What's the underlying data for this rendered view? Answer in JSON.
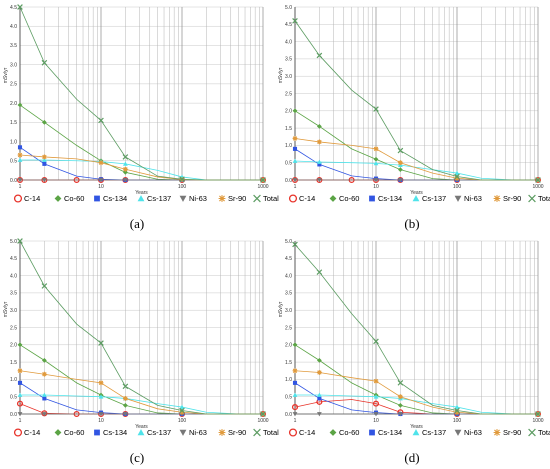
{
  "chart_data": [
    {
      "type": "line",
      "caption": "(a)",
      "xlabel": "Years",
      "ylabel": "mSv/yr",
      "xscale": "log",
      "xlim": [
        1,
        1000
      ],
      "ylim": [
        0,
        4.5
      ],
      "x_ticks": [
        "1",
        "10",
        "100",
        "1000"
      ],
      "y_ticks": [
        "0.0",
        "0.5",
        "1.0",
        "1.5",
        "2.0",
        "2.5",
        "3.0",
        "3.5",
        "4.0",
        "4.5"
      ],
      "grid": true,
      "legend_position": "bottom",
      "x": [
        1,
        2,
        5,
        10,
        20,
        50,
        100,
        200,
        500,
        1000
      ],
      "series": [
        {
          "name": "C-14",
          "color": "#e8332a",
          "marker": "circle",
          "values": [
            0,
            0,
            0,
            0,
            0,
            0,
            0,
            0,
            0,
            0
          ],
          "marker_x": [
            1,
            2,
            5,
            10,
            20,
            100,
            1000
          ]
        },
        {
          "name": "Co-60",
          "color": "#5ba445",
          "marker": "diamond",
          "values": [
            1.95,
            1.5,
            0.9,
            0.5,
            0.2,
            0.02,
            0,
            0,
            0,
            0
          ],
          "marker_x": [
            1,
            2,
            10,
            20,
            100,
            1000
          ]
        },
        {
          "name": "Cs-134",
          "color": "#3155e2",
          "marker": "square",
          "values": [
            0.85,
            0.42,
            0.1,
            0.02,
            0,
            0,
            0,
            0,
            0,
            0
          ],
          "marker_x": [
            1,
            2,
            10,
            20,
            100,
            1000
          ]
        },
        {
          "name": "Cs-137",
          "color": "#4fe3ea",
          "marker": "triangle",
          "values": [
            0.52,
            0.52,
            0.5,
            0.48,
            0.42,
            0.25,
            0.08,
            0,
            0,
            0
          ],
          "marker_x": [
            1,
            2,
            10,
            20,
            100,
            1000
          ]
        },
        {
          "name": "Ni-63",
          "color": "#777777",
          "marker": "triangle-down",
          "values": [
            0,
            0,
            0,
            0,
            0,
            0,
            0,
            0,
            0,
            0
          ],
          "marker_x": [
            1,
            2,
            10,
            20,
            100,
            1000
          ]
        },
        {
          "name": "Sr-90",
          "color": "#e09a3c",
          "marker": "star",
          "values": [
            0.65,
            0.6,
            0.55,
            0.45,
            0.28,
            0.08,
            0.01,
            0,
            0,
            0
          ],
          "marker_x": [
            1,
            2,
            10,
            20,
            100,
            1000
          ]
        },
        {
          "name": "Total",
          "color": "#5c9c62",
          "marker": "x",
          "values": [
            4.5,
            3.05,
            2.1,
            1.55,
            0.6,
            0.1,
            0.02,
            0,
            0,
            0
          ],
          "marker_x": [
            1,
            2,
            10,
            20,
            100,
            1000
          ]
        }
      ]
    },
    {
      "type": "line",
      "caption": "(b)",
      "xlabel": "Years",
      "ylabel": "mSv/yr",
      "xscale": "log",
      "xlim": [
        1,
        1000
      ],
      "ylim": [
        0,
        5.0
      ],
      "x_ticks": [
        "1",
        "10",
        "100",
        "1000"
      ],
      "y_ticks": [
        "0.0",
        "0.5",
        "1.0",
        "1.5",
        "2.0",
        "2.5",
        "3.0",
        "3.5",
        "4.0",
        "4.5",
        "5.0"
      ],
      "grid": true,
      "legend_position": "bottom",
      "x": [
        1,
        2,
        5,
        10,
        20,
        50,
        100,
        200,
        500,
        1000
      ],
      "series": [
        {
          "name": "C-14",
          "color": "#e8332a",
          "marker": "circle",
          "values": [
            0,
            0,
            0,
            0,
            0,
            0,
            0,
            0,
            0,
            0
          ],
          "marker_x": [
            1,
            2,
            5,
            10,
            20,
            100,
            1000
          ]
        },
        {
          "name": "Co-60",
          "color": "#5ba445",
          "marker": "diamond",
          "values": [
            2.0,
            1.55,
            0.9,
            0.6,
            0.3,
            0.04,
            0,
            0,
            0,
            0
          ],
          "marker_x": [
            1,
            2,
            10,
            20,
            100,
            1000
          ]
        },
        {
          "name": "Cs-134",
          "color": "#3155e2",
          "marker": "square",
          "values": [
            0.9,
            0.45,
            0.12,
            0.04,
            0,
            0,
            0,
            0,
            0,
            0
          ],
          "marker_x": [
            1,
            2,
            10,
            20,
            100,
            1000
          ]
        },
        {
          "name": "Cs-137",
          "color": "#4fe3ea",
          "marker": "triangle",
          "values": [
            0.55,
            0.52,
            0.5,
            0.48,
            0.43,
            0.3,
            0.2,
            0.05,
            0,
            0
          ],
          "marker_x": [
            1,
            2,
            10,
            20,
            100,
            1000
          ]
        },
        {
          "name": "Ni-63",
          "color": "#777777",
          "marker": "triangle-down",
          "values": [
            0,
            0,
            0,
            0,
            0,
            0,
            0,
            0,
            0,
            0
          ],
          "marker_x": [
            1,
            2,
            10,
            20,
            100,
            1000
          ]
        },
        {
          "name": "Sr-90",
          "color": "#e09a3c",
          "marker": "star",
          "values": [
            1.2,
            1.1,
            1.0,
            0.9,
            0.5,
            0.2,
            0.05,
            0,
            0,
            0
          ],
          "marker_x": [
            1,
            2,
            10,
            20,
            100,
            1000
          ]
        },
        {
          "name": "Total",
          "color": "#5c9c62",
          "marker": "x",
          "values": [
            4.6,
            3.6,
            2.6,
            2.05,
            0.85,
            0.3,
            0.1,
            0,
            0,
            0
          ],
          "marker_x": [
            1,
            2,
            10,
            20,
            100,
            1000
          ]
        }
      ]
    },
    {
      "type": "line",
      "caption": "(c)",
      "xlabel": "Years",
      "ylabel": "mSv/yr",
      "xscale": "log",
      "xlim": [
        1,
        1000
      ],
      "ylim": [
        0,
        5.0
      ],
      "x_ticks": [
        "1",
        "10",
        "100",
        "1000"
      ],
      "y_ticks": [
        "0.0",
        "0.5",
        "1.0",
        "1.5",
        "2.0",
        "2.5",
        "3.0",
        "3.5",
        "4.0",
        "4.5",
        "5.0"
      ],
      "grid": true,
      "legend_position": "bottom",
      "x": [
        1,
        2,
        5,
        10,
        20,
        50,
        100,
        200,
        500,
        1000
      ],
      "series": [
        {
          "name": "C-14",
          "color": "#e8332a",
          "marker": "circle",
          "values": [
            0.3,
            0.02,
            0,
            0,
            0,
            0,
            0,
            0,
            0,
            0
          ],
          "marker_x": [
            1,
            2,
            5,
            10,
            20,
            100,
            1000
          ]
        },
        {
          "name": "Co-60",
          "color": "#5ba445",
          "marker": "diamond",
          "values": [
            2.0,
            1.55,
            0.9,
            0.55,
            0.25,
            0.03,
            0,
            0,
            0,
            0
          ],
          "marker_x": [
            1,
            2,
            10,
            20,
            100,
            1000
          ]
        },
        {
          "name": "Cs-134",
          "color": "#3155e2",
          "marker": "square",
          "values": [
            0.9,
            0.45,
            0.12,
            0.04,
            0,
            0,
            0,
            0,
            0,
            0
          ],
          "marker_x": [
            1,
            2,
            10,
            20,
            100,
            1000
          ]
        },
        {
          "name": "Cs-137",
          "color": "#4fe3ea",
          "marker": "triangle",
          "values": [
            0.55,
            0.55,
            0.52,
            0.5,
            0.45,
            0.3,
            0.2,
            0.05,
            0,
            0
          ],
          "marker_x": [
            1,
            2,
            10,
            20,
            100,
            1000
          ]
        },
        {
          "name": "Ni-63",
          "color": "#777777",
          "marker": "triangle-down",
          "values": [
            0,
            0,
            0,
            0,
            0,
            0,
            0,
            0,
            0,
            0
          ],
          "marker_x": [
            1,
            2,
            10,
            20,
            100,
            1000
          ]
        },
        {
          "name": "Sr-90",
          "color": "#e09a3c",
          "marker": "star",
          "values": [
            1.25,
            1.15,
            1.0,
            0.9,
            0.45,
            0.15,
            0.05,
            0,
            0,
            0
          ],
          "marker_x": [
            1,
            2,
            10,
            20,
            100,
            1000
          ]
        },
        {
          "name": "Total",
          "color": "#5c9c62",
          "marker": "x",
          "values": [
            5.0,
            3.7,
            2.6,
            2.05,
            0.8,
            0.25,
            0.1,
            0,
            0,
            0
          ],
          "marker_x": [
            1,
            2,
            10,
            20,
            100,
            1000
          ]
        }
      ]
    },
    {
      "type": "line",
      "caption": "(d)",
      "xlabel": "Years",
      "ylabel": "mSv/yr",
      "xscale": "log",
      "xlim": [
        1,
        1000
      ],
      "ylim": [
        0,
        5.0
      ],
      "x_ticks": [
        "1",
        "10",
        "100",
        "1000"
      ],
      "y_ticks": [
        "0.0",
        "0.5",
        "1.0",
        "1.5",
        "2.0",
        "2.5",
        "3.0",
        "3.5",
        "4.0",
        "4.5",
        "5.0"
      ],
      "grid": true,
      "legend_position": "bottom",
      "x": [
        1,
        2,
        5,
        10,
        20,
        50,
        100,
        200,
        500,
        1000
      ],
      "series": [
        {
          "name": "C-14",
          "color": "#e8332a",
          "marker": "circle",
          "values": [
            0.2,
            0.35,
            0.42,
            0.3,
            0.05,
            0,
            0,
            0,
            0,
            0
          ],
          "marker_x": [
            1,
            2,
            10,
            20,
            100,
            1000
          ]
        },
        {
          "name": "Co-60",
          "color": "#5ba445",
          "marker": "diamond",
          "values": [
            2.0,
            1.55,
            0.9,
            0.55,
            0.25,
            0.03,
            0,
            0,
            0,
            0
          ],
          "marker_x": [
            1,
            2,
            10,
            20,
            100,
            1000
          ]
        },
        {
          "name": "Cs-134",
          "color": "#3155e2",
          "marker": "square",
          "values": [
            0.9,
            0.45,
            0.12,
            0.04,
            0,
            0,
            0,
            0,
            0,
            0
          ],
          "marker_x": [
            1,
            2,
            10,
            20,
            100,
            1000
          ]
        },
        {
          "name": "Cs-137",
          "color": "#4fe3ea",
          "marker": "triangle",
          "values": [
            0.55,
            0.55,
            0.52,
            0.5,
            0.45,
            0.3,
            0.2,
            0.05,
            0,
            0
          ],
          "marker_x": [
            1,
            2,
            10,
            20,
            100,
            1000
          ]
        },
        {
          "name": "Ni-63",
          "color": "#777777",
          "marker": "triangle-down",
          "values": [
            0,
            0,
            0,
            0,
            0,
            0,
            0,
            0,
            0,
            0
          ],
          "marker_x": [
            1,
            2,
            10,
            20,
            100,
            1000
          ]
        },
        {
          "name": "Sr-90",
          "color": "#e09a3c",
          "marker": "star",
          "values": [
            1.25,
            1.2,
            1.05,
            0.95,
            0.5,
            0.2,
            0.05,
            0,
            0,
            0
          ],
          "marker_x": [
            1,
            2,
            10,
            20,
            100,
            1000
          ]
        },
        {
          "name": "Total",
          "color": "#5c9c62",
          "marker": "x",
          "values": [
            4.9,
            4.1,
            2.9,
            2.1,
            0.9,
            0.25,
            0.1,
            0,
            0,
            0
          ],
          "marker_x": [
            1,
            2,
            10,
            20,
            100,
            1000
          ]
        }
      ]
    }
  ]
}
